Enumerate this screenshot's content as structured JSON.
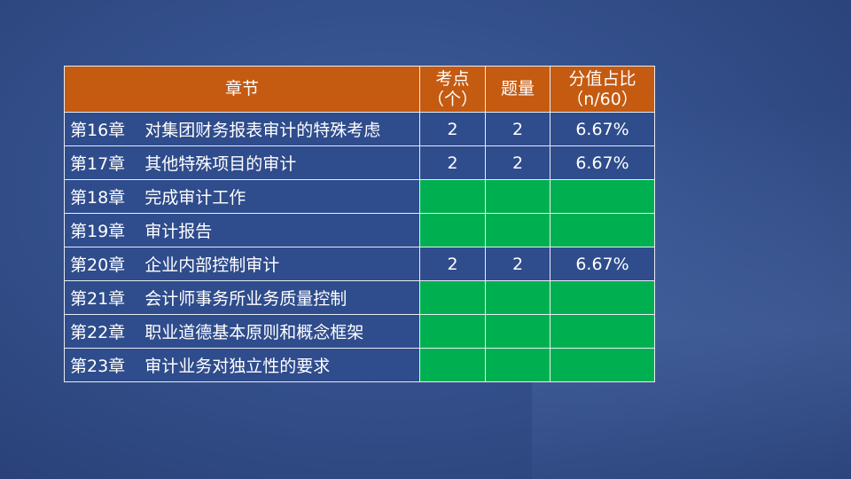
{
  "table": {
    "headers": [
      "章节",
      "考点",
      "（个）",
      "题量",
      "分值占比",
      "（n/60）"
    ],
    "header_color": "#c55a11",
    "empty_cell_color": "#00b050",
    "rows": [
      {
        "chapter": "第16章",
        "title": "对集团财务报表审计的特殊考虑",
        "points": "2",
        "questions": "2",
        "ratio": "6.67%"
      },
      {
        "chapter": "第17章",
        "title": "其他特殊项目的审计",
        "points": "2",
        "questions": "2",
        "ratio": "6.67%"
      },
      {
        "chapter": "第18章",
        "title": "完成审计工作",
        "points": "",
        "questions": "",
        "ratio": ""
      },
      {
        "chapter": "第19章",
        "title": "审计报告",
        "points": "",
        "questions": "",
        "ratio": ""
      },
      {
        "chapter": "第20章",
        "title": "企业内部控制审计",
        "points": "2",
        "questions": "2",
        "ratio": "6.67%"
      },
      {
        "chapter": "第21章",
        "title": "会计师事务所业务质量控制",
        "points": "",
        "questions": "",
        "ratio": ""
      },
      {
        "chapter": "第22章",
        "title": "职业道德基本原则和概念框架",
        "points": "",
        "questions": "",
        "ratio": ""
      },
      {
        "chapter": "第23章",
        "title": "审计业务对独立性的要求",
        "points": "",
        "questions": "",
        "ratio": ""
      }
    ]
  }
}
